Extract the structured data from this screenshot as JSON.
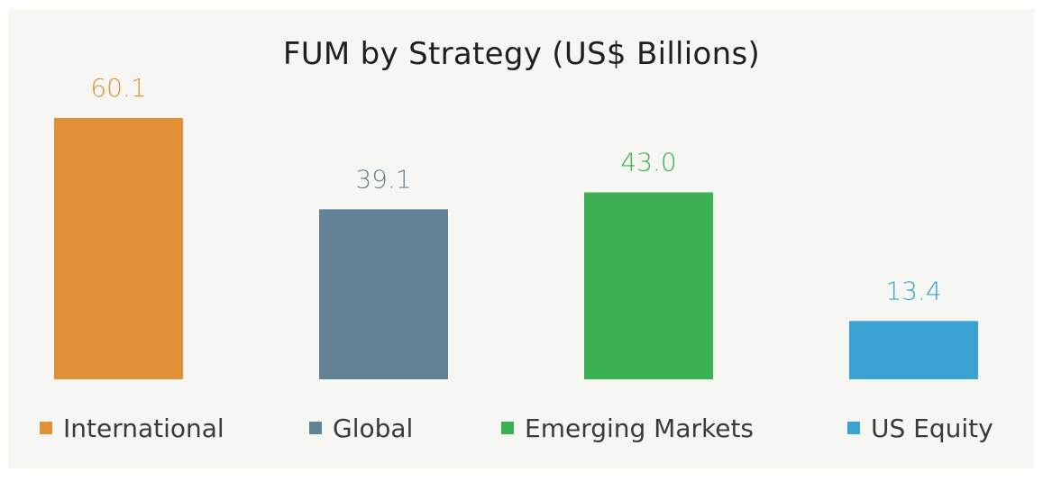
{
  "chart_data": {
    "type": "bar",
    "title": "FUM by Strategy (US$ Billions)",
    "categories": [
      "International",
      "Global",
      "Emerging Markets",
      "US Equity"
    ],
    "values": [
      60.1,
      39.1,
      43.0,
      13.4
    ],
    "value_labels": [
      "60.1",
      "39.1",
      "43.0",
      "13.4"
    ],
    "colors": [
      "#e29035",
      "#628395",
      "#3cb154",
      "#3aa3d3"
    ],
    "xlabel": "",
    "ylabel": "",
    "ylim": [
      0,
      60.1
    ],
    "grid": false,
    "legend_position": "bottom"
  }
}
